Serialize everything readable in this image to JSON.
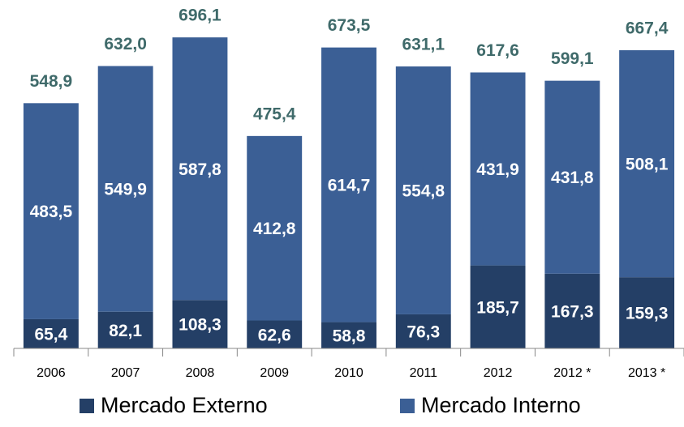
{
  "chart_data": {
    "type": "stacked_bar",
    "categories": [
      "2006",
      "2007",
      "2008",
      "2009",
      "2010",
      "2011",
      "2012",
      "2012 *",
      "2013 *"
    ],
    "series": [
      {
        "name": "Mercado Externo",
        "color": "#243f66",
        "values": [
          65.4,
          82.1,
          108.3,
          62.6,
          58.8,
          76.3,
          185.7,
          167.3,
          159.3
        ],
        "value_labels": [
          "65,4",
          "82,1",
          "108,3",
          "62,6",
          "58,8",
          "76,3",
          "185,7",
          "167,3",
          "159,3"
        ]
      },
      {
        "name": "Mercado Interno",
        "color": "#3b5f95",
        "values": [
          483.5,
          549.9,
          587.8,
          412.8,
          614.7,
          554.8,
          431.9,
          431.8,
          508.1
        ],
        "value_labels": [
          "483,5",
          "549,9",
          "587,8",
          "412,8",
          "614,7",
          "554,8",
          "431,9",
          "431,8",
          "508,1"
        ]
      }
    ],
    "total_labels": [
      "548,9",
      "632,0",
      "696,1",
      "475,4",
      "673,5",
      "631,1",
      "617,6",
      "599,1",
      "667,4"
    ],
    "total_color": "#3f6a6a",
    "ylim": [
      0,
      700
    ]
  }
}
